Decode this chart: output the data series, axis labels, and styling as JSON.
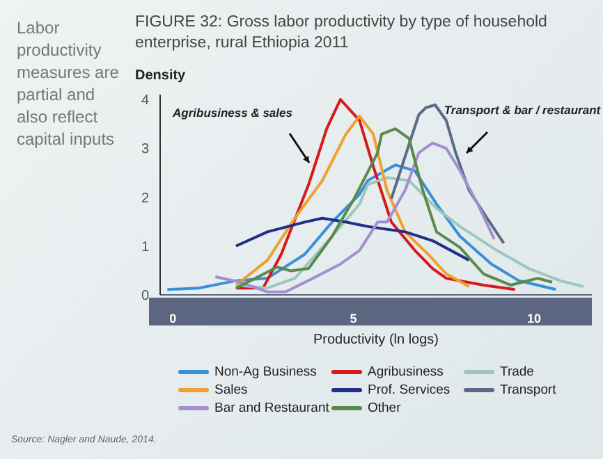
{
  "chart_data": {
    "type": "line",
    "title": "FIGURE 32: Gross labor productivity by type of household enterprise, rural Ethiopia 2011",
    "ylabel": "Density",
    "xlabel": "Productivity (ln logs)",
    "annotations": [
      "Labor productivity measures are partial and also reflect capital inputs",
      "Agribusiness & sales",
      "Transport & bar / restaurant",
      "Source: Nagler and Naude, 2014."
    ],
    "xlim": [
      -0.35,
      11.6
    ],
    "xticks": [
      0,
      5,
      10
    ],
    "ylim": [
      0,
      4.1
    ],
    "yticks": [
      0,
      1,
      2,
      3,
      4
    ],
    "legend": "bottom",
    "line_style": "solid",
    "series": [
      {
        "name": "Non-Ag Business",
        "color": "#3a8fd8",
        "x": [
          -0.15,
          0.72,
          1.75,
          2.62,
          3.65,
          4.41,
          5.17,
          5.4,
          6.16,
          6.7,
          7.3,
          7.95,
          8.82,
          9.58,
          10.6
        ],
        "values": [
          0.11,
          0.14,
          0.29,
          0.34,
          0.83,
          1.49,
          2.06,
          2.34,
          2.66,
          2.54,
          1.86,
          1.2,
          0.63,
          0.29,
          0.11
        ]
      },
      {
        "name": "Agribusiness",
        "color": "#d7191c",
        "x": [
          1.75,
          2.5,
          3.0,
          3.76,
          4.26,
          4.64,
          5.17,
          5.55,
          6.05,
          6.7,
          7.19,
          7.57,
          8.6,
          9.47
        ],
        "values": [
          0.14,
          0.14,
          0.83,
          2.26,
          3.4,
          4.0,
          3.57,
          2.63,
          1.49,
          0.91,
          0.54,
          0.34,
          0.2,
          0.11
        ]
      },
      {
        "name": "Trade",
        "color": "#9cc7c0",
        "x": [
          1.75,
          2.62,
          3.38,
          4.41,
          5.17,
          5.4,
          5.93,
          6.54,
          7.3,
          7.95,
          8.97,
          9.85,
          10.72,
          11.37
        ],
        "values": [
          0.2,
          0.14,
          0.34,
          1.2,
          1.86,
          2.26,
          2.4,
          2.34,
          1.77,
          1.4,
          0.91,
          0.54,
          0.29,
          0.17
        ]
      },
      {
        "name": "Sales",
        "color": "#f0a030",
        "x": [
          1.75,
          2.62,
          3.38,
          4.14,
          4.79,
          5.17,
          5.55,
          5.93,
          6.43,
          7.07,
          7.57,
          8.2
        ],
        "values": [
          0.2,
          0.71,
          1.57,
          2.34,
          3.29,
          3.66,
          3.29,
          2.14,
          1.29,
          0.83,
          0.43,
          0.17
        ]
      },
      {
        "name": "Prof. Services",
        "color": "#1f2f8a",
        "x": [
          1.75,
          2.62,
          3.65,
          4.14,
          4.79,
          5.4,
          6.43,
          7.19,
          8.2
        ],
        "values": [
          1.0,
          1.29,
          1.49,
          1.57,
          1.49,
          1.4,
          1.29,
          1.11,
          0.71
        ]
      },
      {
        "name": "Transport",
        "color": "#5a6a88",
        "x": [
          6.05,
          6.43,
          6.81,
          7.0,
          7.26,
          7.57,
          7.83,
          8.2,
          8.7,
          9.16
        ],
        "values": [
          1.97,
          2.83,
          3.69,
          3.83,
          3.89,
          3.57,
          2.91,
          2.14,
          1.57,
          1.06
        ]
      },
      {
        "name": "Bar and Restaurant",
        "color": "#a38fd0",
        "x": [
          1.18,
          1.86,
          2.62,
          3.12,
          3.88,
          4.64,
          5.17,
          5.67,
          5.93,
          6.43,
          6.81,
          7.19,
          7.57,
          7.95,
          8.44,
          8.9
        ],
        "values": [
          0.37,
          0.26,
          0.06,
          0.06,
          0.34,
          0.63,
          0.91,
          1.49,
          1.49,
          2.14,
          2.91,
          3.11,
          3.0,
          2.54,
          1.86,
          1.14
        ]
      },
      {
        "name": "Other",
        "color": "#5a8a4a",
        "x": [
          1.75,
          2.89,
          3.27,
          3.76,
          4.41,
          5.02,
          5.67,
          5.78,
          6.16,
          6.54,
          6.92,
          7.3,
          7.95,
          8.6,
          9.35,
          10.1,
          10.5
        ],
        "values": [
          0.14,
          0.57,
          0.49,
          0.54,
          1.2,
          1.97,
          2.91,
          3.29,
          3.4,
          3.2,
          2.14,
          1.29,
          0.97,
          0.43,
          0.2,
          0.34,
          0.26
        ]
      }
    ]
  }
}
